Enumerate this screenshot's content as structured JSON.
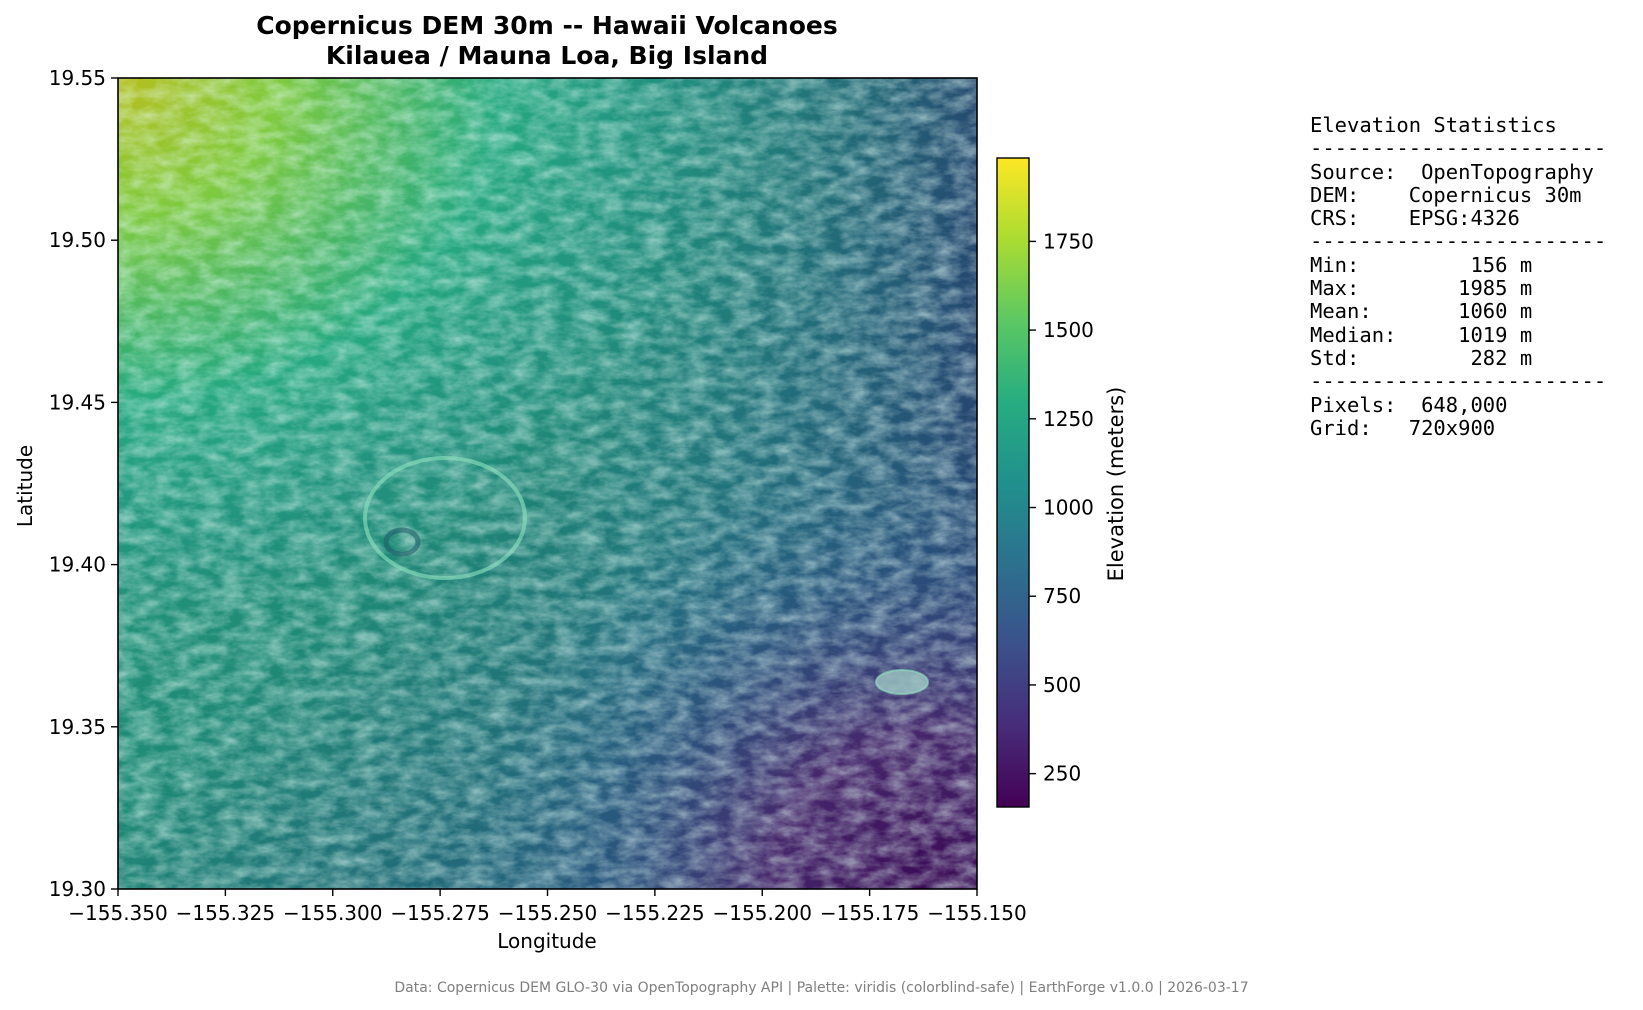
{
  "chart_data": {
    "type": "heatmap",
    "title_line1": "Copernicus DEM 30m -- Hawaii Volcanoes",
    "title_line2": "Kilauea / Mauna Loa, Big Island",
    "xlabel": "Longitude",
    "ylabel": "Latitude",
    "xlim": [
      -155.35,
      -155.15
    ],
    "ylim": [
      19.3,
      19.55
    ],
    "x_ticks": [
      -155.35,
      -155.325,
      -155.3,
      -155.275,
      -155.25,
      -155.225,
      -155.2,
      -155.175,
      -155.15
    ],
    "x_tick_labels": [
      "−155.350",
      "−155.325",
      "−155.300",
      "−155.275",
      "−155.250",
      "−155.225",
      "−155.200",
      "−155.175",
      "−155.150"
    ],
    "y_ticks": [
      19.55,
      19.5,
      19.45,
      19.4,
      19.35,
      19.3
    ],
    "y_tick_labels": [
      "19.55",
      "19.50",
      "19.45",
      "19.40",
      "19.35",
      "19.30"
    ],
    "colorbar": {
      "label": "Elevation (meters)",
      "range": [
        156,
        1985
      ],
      "ticks": [
        250,
        500,
        750,
        1000,
        1250,
        1500,
        1750
      ],
      "tick_labels": [
        "250",
        "500",
        "750",
        "1000",
        "1250",
        "1500",
        "1750"
      ],
      "palette": "viridis"
    },
    "viridis_stops": [
      "#440154",
      "#472c7a",
      "#3b518b",
      "#2c718e",
      "#21908d",
      "#27ad81",
      "#5cc863",
      "#aadc32",
      "#fde725"
    ],
    "elevation_features": [
      {
        "lon": -155.35,
        "lat": 19.55,
        "elevation": 1985
      },
      {
        "lon": -155.29,
        "lat": 19.415,
        "elevation": 1150
      },
      {
        "lon": -155.165,
        "lat": 19.368,
        "elevation": 900
      },
      {
        "lon": -155.2,
        "lat": 19.305,
        "elevation": 200
      },
      {
        "lon": -155.15,
        "lat": 19.3,
        "elevation": 156
      }
    ]
  },
  "stats": {
    "lines": [
      "Elevation Statistics",
      "------------------------",
      "Source:  OpenTopography",
      "DEM:    Copernicus 30m",
      "CRS:    EPSG:4326",
      "------------------------",
      "Min:         156 m",
      "Max:        1985 m",
      "Mean:       1060 m",
      "Median:     1019 m",
      "Std:         282 m",
      "------------------------",
      "Pixels:  648,000",
      "Grid:   720x900"
    ]
  },
  "footer": "Data: Copernicus DEM GLO-30 via OpenTopography API | Palette: viridis (colorblind-safe) | EarthForge v1.0.0 | 2026-03-17"
}
